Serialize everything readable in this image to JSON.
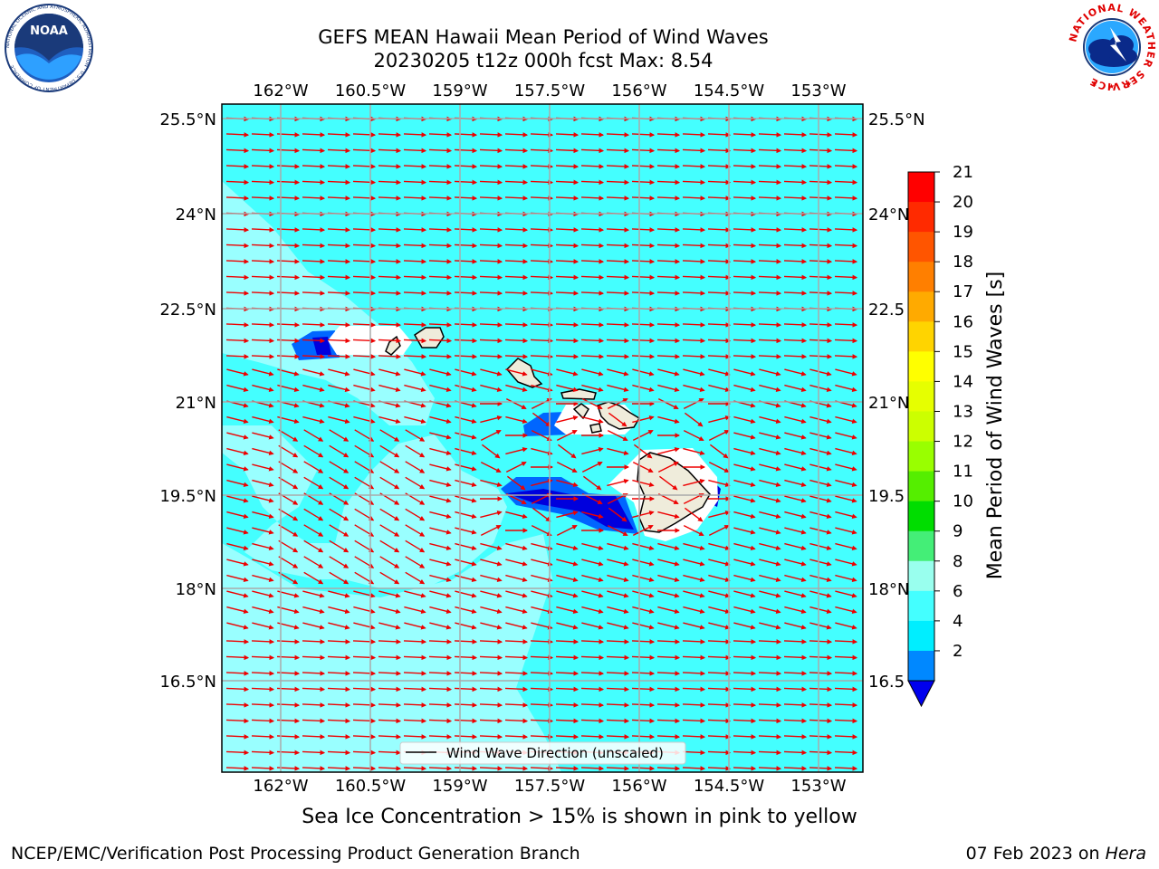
{
  "title_line1": "GEFS MEAN Hawaii Mean Period of Wind Waves",
  "title_line2": "20230205 t12z 000h fcst   Max: 8.54",
  "caption": "Sea Ice Concentration > 15% is shown in pink to yellow",
  "footer_left": "NCEP/EMC/Verification Post Processing Product Generation Branch",
  "footer_date": "07 Feb 2023 on ",
  "footer_host": "Hera",
  "legend_label": "Wind Wave Direction (unscaled)",
  "colorbar_label": "Mean Period of Wind Waves [s]",
  "lon_labels": [
    "162°W",
    "160.5°W",
    "159°W",
    "157.5°W",
    "156°W",
    "154.5°W",
    "153°W"
  ],
  "lat_labels": [
    "25.5°N",
    "24°N",
    "22.5°N",
    "21°N",
    "19.5°N",
    "18°N",
    "16.5°N"
  ],
  "lat_labels_right": [
    "25.5°N",
    "24°N",
    "22.5",
    "21°N",
    "19.5",
    "18°N",
    "16.5"
  ],
  "colorbar_ticks": [
    "21",
    "20",
    "19",
    "18",
    "17",
    "16",
    "15",
    "14",
    "13",
    "12",
    "11",
    "10",
    "9",
    "8",
    "6",
    "4",
    "2"
  ],
  "colorbar_colors": [
    "#ff0000",
    "#ff2a00",
    "#ff5500",
    "#ff7f00",
    "#ffaa00",
    "#ffd400",
    "#ffff00",
    "#e6ff00",
    "#ccff00",
    "#99ff00",
    "#55ee00",
    "#00dd00",
    "#44ee77",
    "#99ffee",
    "#44ffff",
    "#00eeff",
    "#0088ff"
  ],
  "colors": {
    "ocean_base": "#44ffff",
    "ocean_light": "#99ffff",
    "land": "#efecdb",
    "blue": "#0066ff",
    "dark_blue": "#0000dd",
    "arrow": "#ee0000",
    "grid": "#aaaaaa"
  },
  "logos": {
    "left": "NOAA",
    "left_ring": "NATIONAL OCEANIC AND ATMOSPHERIC ADMINISTRATION · U.S. DEPARTMENT OF COMMERCE",
    "right_ring": "NATIONAL WEATHER SERVICE"
  }
}
